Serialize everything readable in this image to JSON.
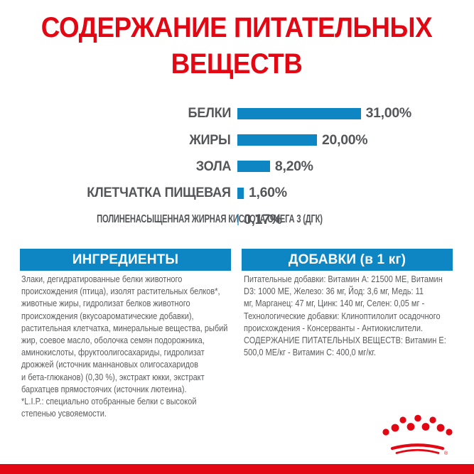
{
  "title": {
    "text": "СОДЕРЖАНИЕ ПИТАТЕЛЬНЫХ ВЕЩЕСТВ"
  },
  "chart_data": {
    "type": "bar",
    "orientation": "horizontal",
    "categories": [
      "БЕЛКИ",
      "ЖИРЫ",
      "ЗОЛА",
      "КЛЕТЧАТКА ПИЩЕВАЯ",
      "ПОЛИНЕНАСЫЩЕННАЯ ЖИРНАЯ КИСЛОТА ОМЕГА 3 (ДГК)"
    ],
    "values": [
      31.0,
      20.0,
      8.2,
      1.6,
      0.17
    ],
    "value_labels": [
      "31,00%",
      "20,00%",
      "8,20%",
      "1,60%",
      "0,17%"
    ],
    "xlim": [
      0,
      31
    ],
    "grid": "off",
    "legend": "none",
    "bar_color": "#0e86c4",
    "label_color": "#54565a"
  },
  "sections": {
    "ingredients": {
      "header": "ИНГРЕДИЕНТЫ",
      "lines": [
        "Злаки, дегидратированные белки животного",
        "происхождения (птица), изолят растительных белков*,",
        "животные жиры, гидролизат белков животного",
        "происхождения (вкусоароматические добавки),",
        "растительная клетчатка, минеральные вещества, рыбий",
        "жир, соевое масло, оболочка семян подорожника,",
        "аминокислоты, фруктоолигосахариды, гидролизат",
        "дрожжей (источник маннановых олигосахаридов",
        "и бета-глюканов) (0,30 %), экстракт юкки, экстракт",
        "бархатцев прямостоячих (источник лютеина).",
        "*L.I.P.: специально отобранные белки с высокой",
        "степенью усвояемости."
      ]
    },
    "additives": {
      "header": "ДОБАВКИ (в 1 кг)",
      "lines": [
        "Питательные добавки: Витамин A: 21500 ME, Витамин",
        "D3: 1000 ME, Железо: 36 мг, Йод: 3,6 мг, Медь: 11",
        "мг, Марганец: 47 мг, Цинк: 140 мг, Селен: 0,05 мг -",
        "Технологические добавки: Клиноптилолит осадочного",
        "происхождения - Консерванты - Антиокислители.",
        "СОДЕРЖАНИЕ ПИТАТЕЛЬНЫХ ВЕЩЕСТВ: Витамин E:",
        "500,0 ME/кг - Витамин C: 400,0 мг/кг."
      ]
    }
  },
  "footer": {
    "registered_mark": "®"
  },
  "colors": {
    "red": "#e30613",
    "blue": "#0e86c4",
    "text_gray": "#5b5c5e",
    "label_gray": "#54565a",
    "white": "#ffffff"
  }
}
